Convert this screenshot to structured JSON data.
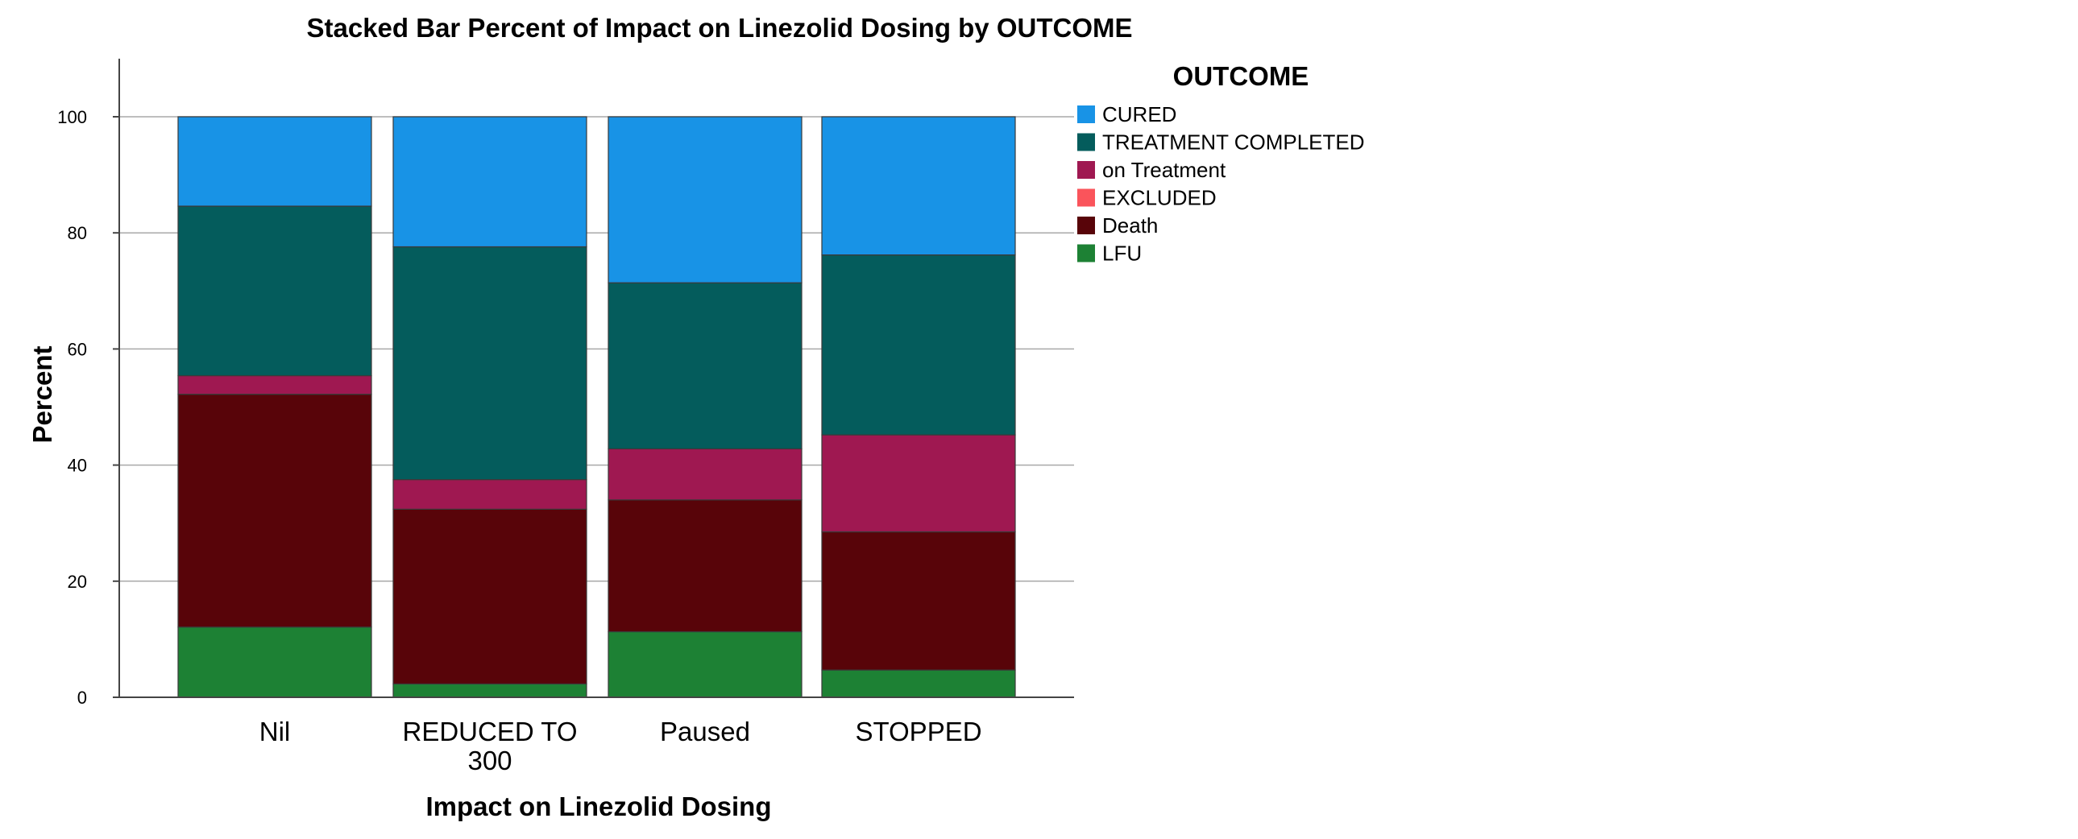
{
  "chart_data": {
    "type": "bar",
    "stacked": true,
    "title": "Stacked Bar Percent of Impact on Linezolid Dosing by OUTCOME",
    "xlabel": "Impact on Linezolid Dosing",
    "ylabel": "Percent",
    "ylim": [
      0,
      110
    ],
    "yticks": [
      0,
      20,
      40,
      60,
      80,
      100
    ],
    "grid": true,
    "categories": [
      [
        "Nil"
      ],
      [
        "REDUCED TO",
        "300"
      ],
      [
        "Paused"
      ],
      [
        "STOPPED"
      ]
    ],
    "legend": {
      "title": "OUTCOME",
      "placement": "right"
    },
    "series": [
      {
        "name": "LFU",
        "color": "#1d8134",
        "values": [
          12.1,
          2.3,
          11.3,
          4.7
        ]
      },
      {
        "name": "Death",
        "color": "#580409",
        "values": [
          40.1,
          30.1,
          22.7,
          23.8
        ]
      },
      {
        "name": "EXCLUDED",
        "color": "#fa545b",
        "values": [
          0,
          0,
          0,
          0
        ]
      },
      {
        "name": "on Treatment",
        "color": "#9f1851",
        "values": [
          3.2,
          5.1,
          8.8,
          16.7
        ]
      },
      {
        "name": "TREATMENT COMPLETED",
        "color": "#045c5c",
        "values": [
          29.2,
          40.1,
          28.6,
          31.0
        ]
      },
      {
        "name": "CURED",
        "color": "#1893e6",
        "values": [
          15.4,
          22.4,
          28.6,
          23.8
        ]
      }
    ],
    "legend_order": [
      "CURED",
      "TREATMENT COMPLETED",
      "on Treatment",
      "EXCLUDED",
      "Death",
      "LFU"
    ]
  }
}
